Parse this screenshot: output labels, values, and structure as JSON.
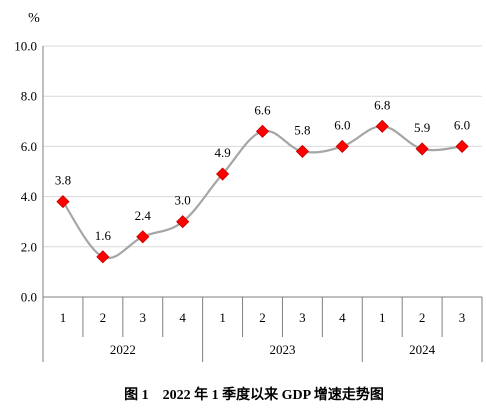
{
  "chart_data": {
    "type": "line",
    "caption": "图 1　2022 年 1 季度以来 GDP 增速走势图",
    "y_unit": "%",
    "ylim": [
      0,
      10
    ],
    "y_ticks": [
      "0.0",
      "2.0",
      "4.0",
      "6.0",
      "8.0",
      "10.0"
    ],
    "grid": true,
    "groups": [
      {
        "year": "2022",
        "quarters": [
          "1",
          "2",
          "3",
          "4"
        ]
      },
      {
        "year": "2023",
        "quarters": [
          "1",
          "2",
          "3",
          "4"
        ]
      },
      {
        "year": "2024",
        "quarters": [
          "1",
          "2",
          "3"
        ]
      }
    ],
    "series": [
      {
        "values": [
          3.8,
          1.6,
          2.4,
          3.0,
          4.9,
          6.6,
          5.8,
          6.0,
          6.8,
          5.9,
          6.0
        ],
        "labels": [
          "3.8",
          "1.6",
          "2.4",
          "3.0",
          "4.9",
          "6.6",
          "5.8",
          "6.0",
          "6.8",
          "5.9",
          "6.0"
        ],
        "line_color": "#a6a6a6",
        "marker_color": "#ff0000",
        "marker_edge": "#c00000"
      }
    ],
    "grid_color": "#d9d9d9",
    "axis_color": "#7f7f7f"
  }
}
